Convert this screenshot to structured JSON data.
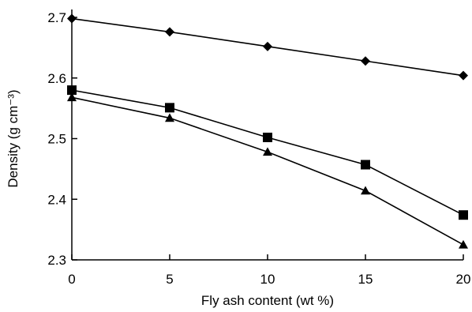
{
  "chart_data": {
    "type": "line",
    "title": "",
    "xlabel": "Fly ash content (wt %)",
    "ylabel": "Density (g cm⁻³)",
    "xlim": [
      0,
      20
    ],
    "ylim": [
      2.3,
      2.7
    ],
    "xticks": [
      0,
      5,
      10,
      15,
      20
    ],
    "yticks": [
      2.3,
      2.4,
      2.5,
      2.6,
      2.7
    ],
    "xtick_labels": [
      "0",
      "5",
      "10",
      "15",
      "20"
    ],
    "ytick_labels": [
      "2.3",
      "2.4",
      "2.5",
      "2.6",
      "2.7"
    ],
    "grid": false,
    "legend": "none",
    "x": [
      0,
      5,
      10,
      15,
      20
    ],
    "series": [
      {
        "marker": "diamond",
        "values": [
          2.698,
          2.676,
          2.652,
          2.628,
          2.604
        ]
      },
      {
        "marker": "square",
        "values": [
          2.58,
          2.551,
          2.502,
          2.457,
          2.374
        ]
      },
      {
        "marker": "triangle",
        "values": [
          2.568,
          2.534,
          2.478,
          2.414,
          2.325
        ]
      }
    ]
  }
}
